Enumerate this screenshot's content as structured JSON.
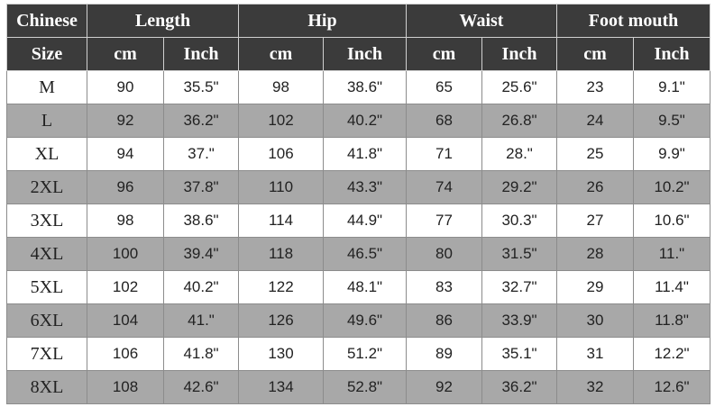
{
  "header": {
    "row1": [
      "Chinese",
      "Length",
      "Hip",
      "Waist",
      "Foot mouth"
    ],
    "row2": [
      "Size",
      "cm",
      "Inch",
      "cm",
      "Inch",
      "cm",
      "Inch",
      "cm",
      "Inch"
    ]
  },
  "table": {
    "rows": [
      [
        "M",
        "90",
        "35.5\"",
        "98",
        "38.6\"",
        "65",
        "25.6\"",
        "23",
        "9.1\""
      ],
      [
        "L",
        "92",
        "36.2\"",
        "102",
        "40.2\"",
        "68",
        "26.8\"",
        "24",
        "9.5\""
      ],
      [
        "XL",
        "94",
        "37.\"",
        "106",
        "41.8\"",
        "71",
        "28.\"",
        "25",
        "9.9\""
      ],
      [
        "2XL",
        "96",
        "37.8\"",
        "110",
        "43.3\"",
        "74",
        "29.2\"",
        "26",
        "10.2\""
      ],
      [
        "3XL",
        "98",
        "38.6\"",
        "114",
        "44.9\"",
        "77",
        "30.3\"",
        "27",
        "10.6\""
      ],
      [
        "4XL",
        "100",
        "39.4\"",
        "118",
        "46.5\"",
        "80",
        "31.5\"",
        "28",
        "11.\""
      ],
      [
        "5XL",
        "102",
        "40.2\"",
        "122",
        "48.1\"",
        "83",
        "32.7\"",
        "29",
        "11.4\""
      ],
      [
        "6XL",
        "104",
        "41.\"",
        "126",
        "49.6\"",
        "86",
        "33.9\"",
        "30",
        "11.8\""
      ],
      [
        "7XL",
        "106",
        "41.8\"",
        "130",
        "51.2\"",
        "89",
        "35.1\"",
        "31",
        "12.2\""
      ],
      [
        "8XL",
        "108",
        "42.6\"",
        "134",
        "52.8\"",
        "92",
        "36.2\"",
        "32",
        "12.6\""
      ]
    ]
  }
}
